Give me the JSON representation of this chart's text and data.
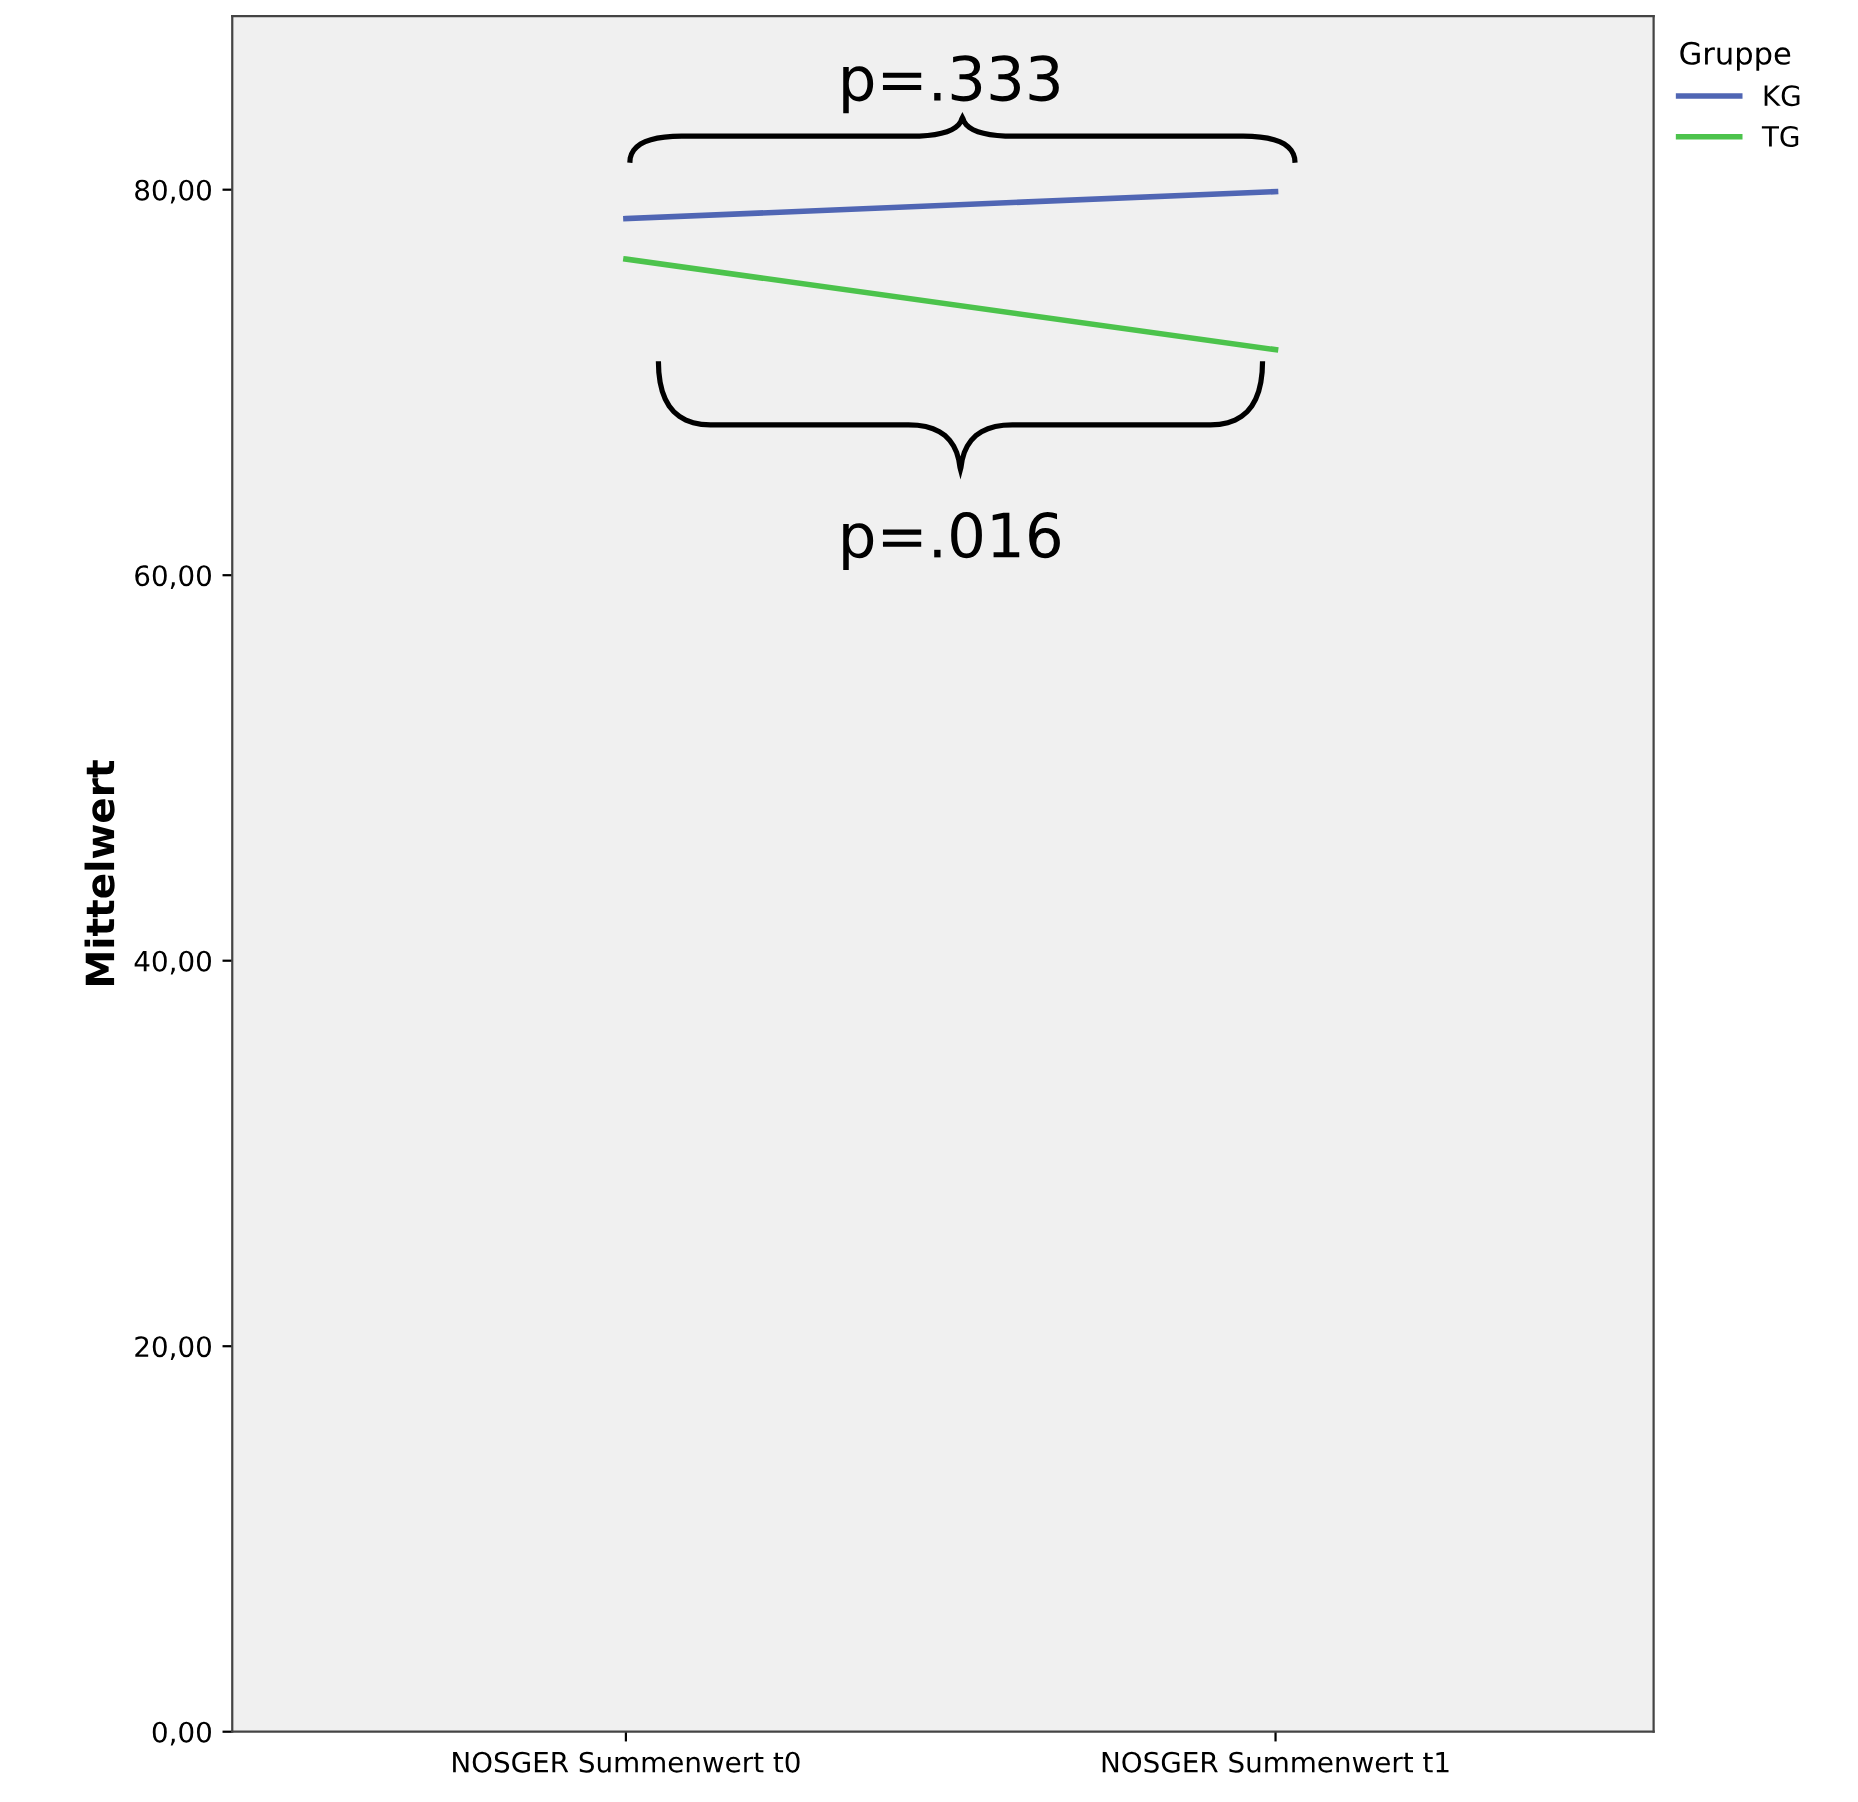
{
  "chart_data": {
    "type": "line",
    "categories": [
      "NOSGER Summenwert t0",
      "NOSGER Summenwert t1"
    ],
    "series": [
      {
        "name": "KG",
        "color": "#5066b4",
        "values": [
          78.5,
          79.9
        ]
      },
      {
        "name": "TG",
        "color": "#4cc34c",
        "values": [
          76.4,
          71.7
        ]
      }
    ],
    "ylabel": "Mittelwert",
    "legend_title": "Gruppe",
    "legend": "top right",
    "ylim": [
      0,
      89
    ],
    "yticks": [
      {
        "value": 0,
        "label": "0,00"
      },
      {
        "value": 20,
        "label": "20,00"
      },
      {
        "value": 40,
        "label": "40,00"
      },
      {
        "value": 60,
        "label": "60,00"
      },
      {
        "value": 80,
        "label": "80,00"
      }
    ],
    "annotations": [
      "p=.333",
      "p=.016"
    ],
    "grid": false
  }
}
